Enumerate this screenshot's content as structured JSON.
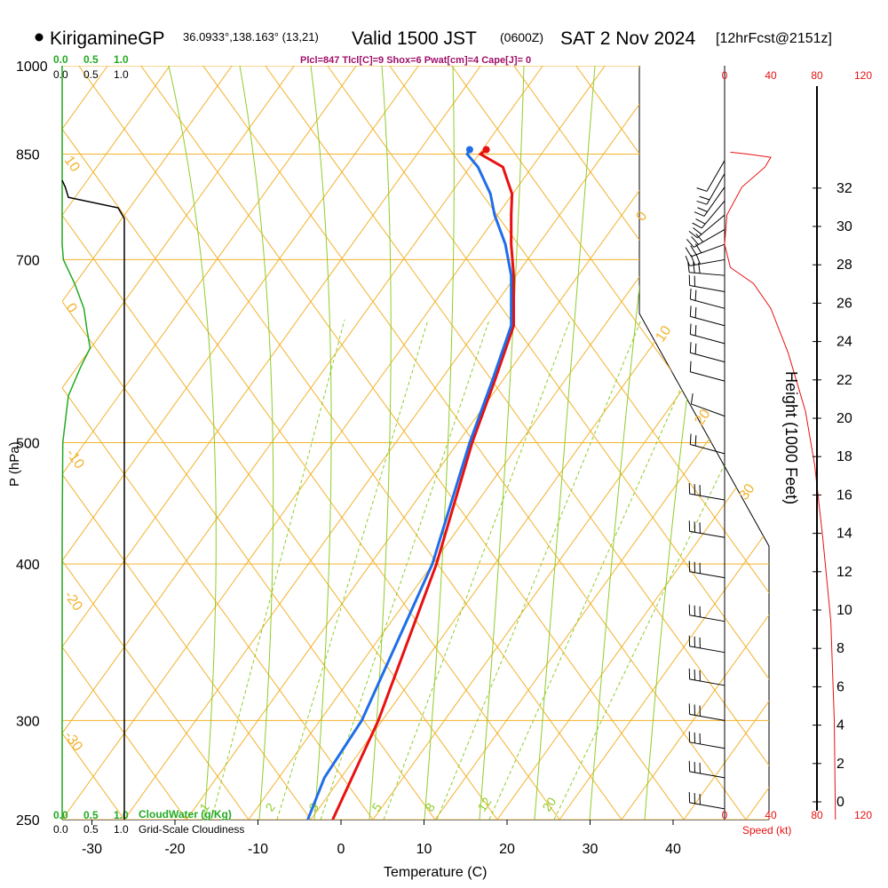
{
  "header": {
    "station": "KirigamineGP",
    "coords": "36.0933°,138.163° (13,21)",
    "valid": "Valid 1500 JST",
    "zulu": "(0600Z)",
    "date": "SAT 2 Nov 2024",
    "forecast": "[12hrFcst@2151z]",
    "indices": "Plcl=847 Tlcl[C]=9 Shox=6 Pwat[cm]=4 Cape[J]= 0"
  },
  "colors": {
    "temperature": "#e81010",
    "dewpoint": "#1f6ee8",
    "isotherm_isobar": "#f2b22c",
    "moist_adiabat": "#8fcc2a",
    "mixing_ratio": "#8fcc2a",
    "cloud_water": "#22aa22",
    "cloudiness": "#000000",
    "speed": "#e81010",
    "indices": "#a0106a"
  },
  "chart_data": {
    "type": "line",
    "title": "KirigamineGP Valid 1500 JST (0600Z) SAT 2 Nov 2024",
    "xlabel": "Temperature (C)",
    "ylabel": "P (hPa)",
    "x_ticks": [
      "-30",
      "-20",
      "-10",
      "0",
      "10",
      "20",
      "30",
      "40"
    ],
    "y_ticks": [
      "250",
      "300",
      "400",
      "500",
      "700",
      "850",
      "1000"
    ],
    "skew_isotherm_labels": [
      "10",
      "0",
      "-10",
      "-20",
      "-30",
      "0",
      "10",
      "20",
      "30"
    ],
    "mixing_ratio_labels": [
      "1",
      "2",
      "3",
      "5",
      "8",
      "12",
      "20"
    ],
    "series": [
      {
        "name": "Temperature",
        "points": [
          [
            857,
            17.5
          ],
          [
            850,
            16.8
          ],
          [
            830,
            19.5
          ],
          [
            790,
            20.6
          ],
          [
            760,
            20.5
          ],
          [
            720,
            20.5
          ],
          [
            680,
            20.8
          ],
          [
            620,
            20.8
          ],
          [
            560,
            18.5
          ],
          [
            500,
            15.8
          ],
          [
            400,
            11.5
          ],
          [
            300,
            4.5
          ],
          [
            250,
            -1
          ]
        ]
      },
      {
        "name": "Dewpoint",
        "points": [
          [
            857,
            15.5
          ],
          [
            850,
            15.2
          ],
          [
            830,
            16.5
          ],
          [
            790,
            18.0
          ],
          [
            760,
            18.5
          ],
          [
            720,
            19.8
          ],
          [
            680,
            20.5
          ],
          [
            620,
            20.5
          ],
          [
            560,
            18.2
          ],
          [
            500,
            15.5
          ],
          [
            400,
            11.0
          ],
          [
            300,
            2.5
          ],
          [
            270,
            -2
          ],
          [
            250,
            -4
          ]
        ]
      }
    ],
    "cloud_water": {
      "name": "CloudWater (g/Kg)",
      "ticks": [
        "0.0",
        "0.5",
        "1.0"
      ],
      "points": [
        [
          250,
          0
        ],
        [
          420,
          0
        ],
        [
          500,
          0.01
        ],
        [
          545,
          0.1
        ],
        [
          575,
          0.3
        ],
        [
          595,
          0.45
        ],
        [
          615,
          0.4
        ],
        [
          640,
          0.35
        ],
        [
          670,
          0.2
        ],
        [
          700,
          0.02
        ],
        [
          720,
          0
        ],
        [
          1000,
          0
        ]
      ]
    },
    "cloudiness": {
      "name": "Grid-Scale Cloudiness",
      "ticks": [
        "0.0",
        "0.5",
        "1.0"
      ],
      "points": [
        [
          250,
          1
        ],
        [
          755,
          1
        ],
        [
          770,
          0.9
        ],
        [
          785,
          0.1
        ],
        [
          800,
          0.05
        ],
        [
          810,
          0
        ]
      ]
    },
    "wind": {
      "speed_label": "Speed (kt)",
      "speed_ticks": [
        "0",
        "40",
        "80",
        "120"
      ],
      "barbs": [
        {
          "p": 255,
          "spd": 35,
          "dir": 280
        },
        {
          "p": 270,
          "spd": 35,
          "dir": 280
        },
        {
          "p": 285,
          "spd": 35,
          "dir": 280
        },
        {
          "p": 300,
          "spd": 35,
          "dir": 280
        },
        {
          "p": 320,
          "spd": 35,
          "dir": 280
        },
        {
          "p": 340,
          "spd": 35,
          "dir": 280
        },
        {
          "p": 360,
          "spd": 35,
          "dir": 280
        },
        {
          "p": 390,
          "spd": 35,
          "dir": 280
        },
        {
          "p": 420,
          "spd": 35,
          "dir": 280
        },
        {
          "p": 450,
          "spd": 30,
          "dir": 280
        },
        {
          "p": 490,
          "spd": 25,
          "dir": 285
        },
        {
          "p": 525,
          "spd": 15,
          "dir": 290
        },
        {
          "p": 560,
          "spd": 15,
          "dir": 285
        },
        {
          "p": 580,
          "spd": 20,
          "dir": 285
        },
        {
          "p": 600,
          "spd": 20,
          "dir": 285
        },
        {
          "p": 620,
          "spd": 20,
          "dir": 285
        },
        {
          "p": 640,
          "spd": 20,
          "dir": 285
        },
        {
          "p": 660,
          "spd": 25,
          "dir": 280
        },
        {
          "p": 680,
          "spd": 30,
          "dir": 275
        },
        {
          "p": 700,
          "spd": 35,
          "dir": 260
        },
        {
          "p": 720,
          "spd": 35,
          "dir": 250
        },
        {
          "p": 740,
          "spd": 30,
          "dir": 240
        },
        {
          "p": 760,
          "spd": 25,
          "dir": 230
        },
        {
          "p": 780,
          "spd": 25,
          "dir": 220
        },
        {
          "p": 800,
          "spd": 20,
          "dir": 215
        },
        {
          "p": 820,
          "spd": 20,
          "dir": 210
        },
        {
          "p": 840,
          "spd": 15,
          "dir": 210
        }
      ],
      "speed_profile": [
        [
          853,
          5
        ],
        [
          850,
          20
        ],
        [
          845,
          40
        ],
        [
          830,
          35
        ],
        [
          800,
          15
        ],
        [
          760,
          2
        ],
        [
          720,
          0
        ],
        [
          690,
          5
        ],
        [
          670,
          25
        ],
        [
          640,
          40
        ],
        [
          590,
          55
        ],
        [
          530,
          70
        ],
        [
          480,
          78
        ],
        [
          420,
          85
        ],
        [
          360,
          92
        ],
        [
          300,
          95
        ],
        [
          250,
          96
        ]
      ]
    },
    "height_axis": {
      "label": "Height (1000 Feet)",
      "ticks": [
        "0",
        "2",
        "4",
        "6",
        "8",
        "10",
        "12",
        "14",
        "16",
        "18",
        "20",
        "22",
        "24",
        "26",
        "28",
        "30",
        "32"
      ]
    }
  }
}
